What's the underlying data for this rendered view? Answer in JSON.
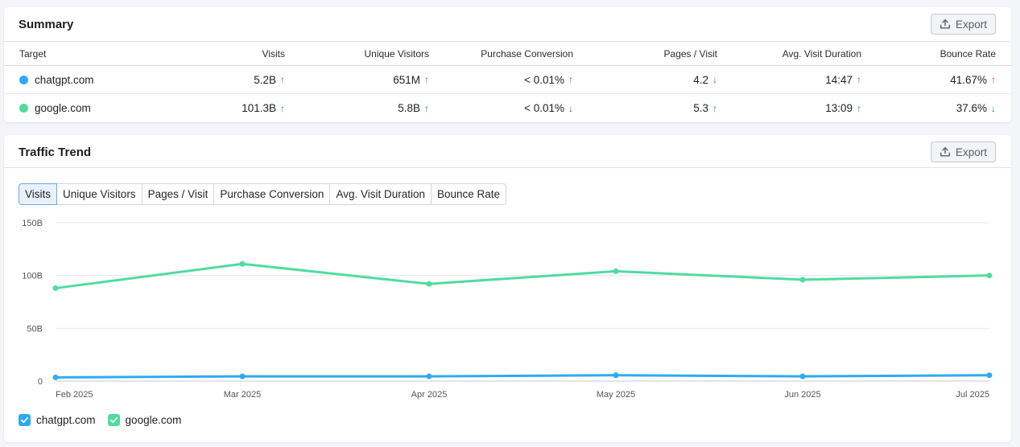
{
  "summary": {
    "title": "Summary",
    "export_label": "Export",
    "columns": [
      "Target",
      "Visits",
      "Unique Visitors",
      "Purchase Conversion",
      "Pages / Visit",
      "Avg. Visit Duration",
      "Bounce Rate"
    ],
    "rows": [
      {
        "target": "chatgpt.com",
        "color": "#2dabf2",
        "values": [
          "5.2B",
          "651M",
          "< 0.01%",
          "4.2",
          "14:47",
          "41.67%"
        ],
        "trends": [
          "up",
          "up",
          "up",
          "down",
          "up",
          "up-bad"
        ]
      },
      {
        "target": "google.com",
        "color": "#4fdc9e",
        "values": [
          "101.3B",
          "5.8B",
          "< 0.01%",
          "5.3",
          "13:09",
          "37.6%"
        ],
        "trends": [
          "up",
          "up",
          "down",
          "up",
          "up",
          "down-good"
        ]
      }
    ]
  },
  "trend": {
    "title": "Traffic Trend",
    "export_label": "Export",
    "tabs": [
      "Visits",
      "Unique Visitors",
      "Pages / Visit",
      "Purchase Conversion",
      "Avg. Visit Duration",
      "Bounce Rate"
    ],
    "active_tab": "Visits",
    "legend": [
      {
        "label": "chatgpt.com",
        "color": "#2dabf2",
        "checked": true
      },
      {
        "label": "google.com",
        "color": "#4fdc9e",
        "checked": true
      }
    ]
  },
  "colors": {
    "up": "#1a8a5a",
    "down": "#d6304b",
    "accent": "#2dabf2"
  },
  "chart_data": {
    "type": "line",
    "x": [
      "Feb 2025",
      "Mar 2025",
      "Apr 2025",
      "May 2025",
      "Jun 2025",
      "Jul 2025"
    ],
    "yticks": [
      "0",
      "50B",
      "100B",
      "150B"
    ],
    "ylim": [
      0,
      150
    ],
    "ytick_values": [
      0,
      50,
      100,
      150
    ],
    "yunit": "B",
    "grid": true,
    "legend_position": "bottom-left",
    "series": [
      {
        "name": "chatgpt.com",
        "color": "#2dabf2",
        "values": [
          3.5,
          4.5,
          4.5,
          5.5,
          4.5,
          5.5
        ]
      },
      {
        "name": "google.com",
        "color": "#4fdc9e",
        "values": [
          88,
          111,
          92,
          104,
          96,
          100
        ]
      }
    ]
  }
}
